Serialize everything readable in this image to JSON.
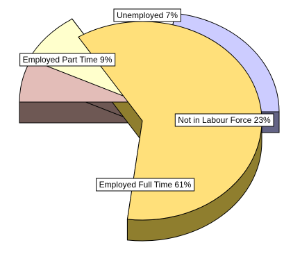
{
  "chart_data": {
    "type": "pie",
    "style": "3d-exploded",
    "slices": [
      {
        "label": "Employed Full Time",
        "percent": 61,
        "display": "Employed Full Time 61%",
        "color": "#FFE07A",
        "side_color": "#8F7E2E"
      },
      {
        "label": "Employed Part Time",
        "percent": 9,
        "display": "Employed Part Time 9%",
        "color": "#FFFFCC",
        "side_color": "#7F8060"
      },
      {
        "label": "Unemployed",
        "percent": 7,
        "display": "Unemployed 7%",
        "color": "#E3BDB8",
        "side_color": "#6E5854"
      },
      {
        "label": "Not in Labour Force",
        "percent": 23,
        "display": "Not in Labour Force 23%",
        "color": "#CCCCFF",
        "side_color": "#646486"
      }
    ]
  }
}
